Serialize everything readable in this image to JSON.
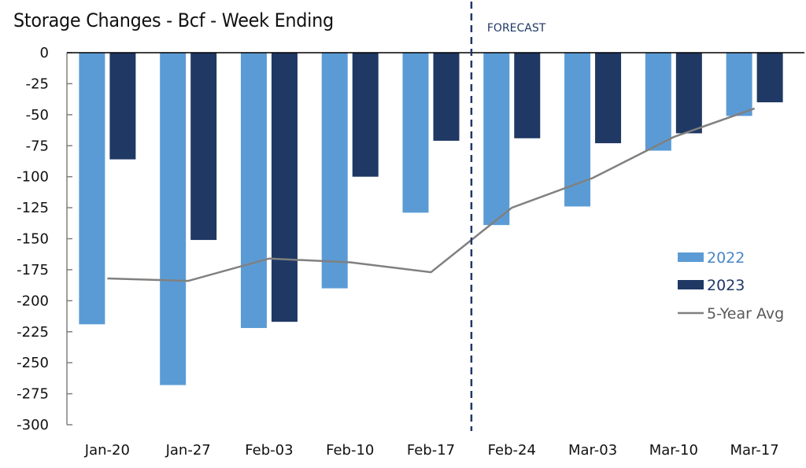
{
  "chart_data": {
    "type": "bar",
    "title": "Storage Changes - Bcf - Week Ending",
    "xlabel": "",
    "ylabel": "",
    "ylim": [
      -300,
      0
    ],
    "yticks": [
      0,
      -25,
      -50,
      -75,
      -100,
      -125,
      -150,
      -175,
      -200,
      -225,
      -250,
      -275,
      -300
    ],
    "categories": [
      "Jan-20",
      "Jan-27",
      "Feb-03",
      "Feb-10",
      "Feb-17",
      "Feb-24",
      "Mar-03",
      "Mar-10",
      "Mar-17"
    ],
    "series": [
      {
        "name": "2022",
        "type": "bar",
        "color": "#5b9bd5",
        "values": [
          -219,
          -268,
          -222,
          -190,
          -129,
          -139,
          -124,
          -79,
          -51
        ]
      },
      {
        "name": "2023",
        "type": "bar",
        "color": "#1f3864",
        "values": [
          -86,
          -151,
          -217,
          -100,
          -71,
          -69,
          -73,
          -65,
          -40
        ]
      },
      {
        "name": "5-Year Avg",
        "type": "line",
        "color": "#808080",
        "values": [
          -182,
          -184,
          -166,
          -169,
          -177,
          -125,
          -101,
          -68,
          -45
        ]
      }
    ],
    "annotations": [
      {
        "text": "FORECAST",
        "type": "vertical-dashed-divider",
        "between": [
          "Feb-17",
          "Feb-24"
        ],
        "color": "#1f3864"
      }
    ],
    "legend": {
      "placement": "right",
      "entries": [
        "2022",
        "2023",
        "5-Year Avg"
      ]
    },
    "grid": false
  }
}
